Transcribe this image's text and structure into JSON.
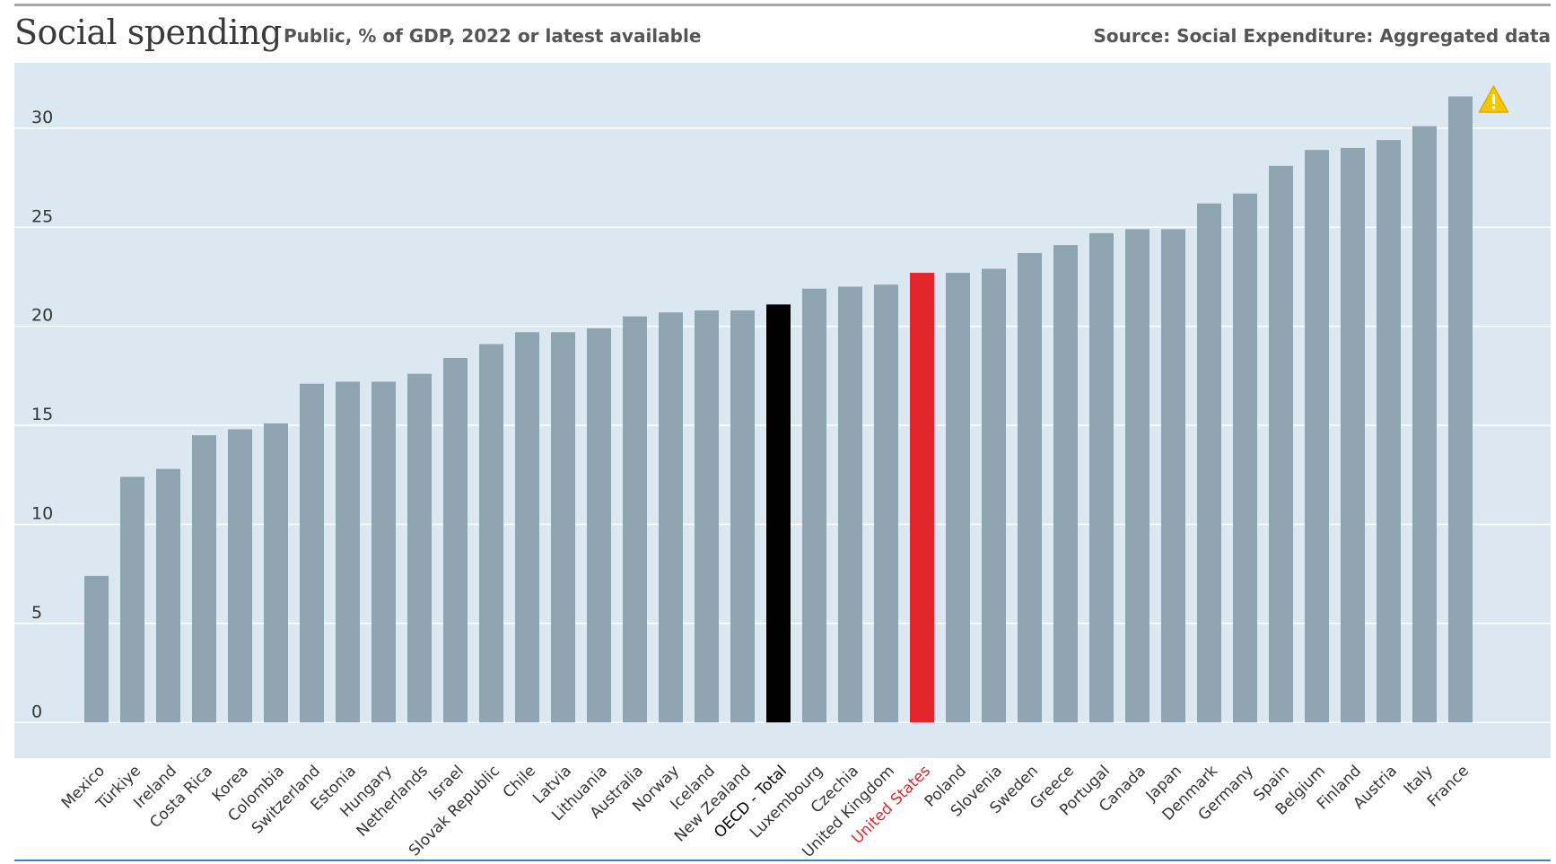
{
  "header": {
    "title": "Social spending",
    "subtitle": "Public, % of GDP, 2022 or latest available",
    "source": "Source: Social Expenditure: Aggregated data"
  },
  "colors": {
    "plot_background": "#dbe8f1",
    "gridline": "#ffffff",
    "bar_default": "#8fa4b1",
    "bar_oecd": "#000000",
    "bar_highlight": "#e3262b",
    "label_default": "#333333",
    "label_oecd": "#000000",
    "label_highlight": "#e3262b",
    "warning": "#f7c600"
  },
  "warning_icon": "warning-triangle-icon",
  "chart_data": {
    "type": "bar",
    "title": "Social spending",
    "subtitle": "Public, % of GDP, 2022 or latest available",
    "xlabel": "",
    "ylabel": "",
    "ylim": [
      -1.8,
      33.3
    ],
    "yticks": [
      0,
      5,
      10,
      15,
      20,
      25,
      30
    ],
    "grid": true,
    "categories": [
      "Mexico",
      "Türkiye",
      "Ireland",
      "Costa Rica",
      "Korea",
      "Colombia",
      "Switzerland",
      "Estonia",
      "Hungary",
      "Netherlands",
      "Israel",
      "Slovak Republic",
      "Chile",
      "Latvia",
      "Lithuania",
      "Australia",
      "Norway",
      "Iceland",
      "New Zealand",
      "OECD - Total",
      "Luxembourg",
      "Czechia",
      "United Kingdom",
      "United States",
      "Poland",
      "Slovenia",
      "Sweden",
      "Greece",
      "Portugal",
      "Canada",
      "Japan",
      "Denmark",
      "Germany",
      "Spain",
      "Belgium",
      "Finland",
      "Austria",
      "Italy",
      "France"
    ],
    "values": [
      7.4,
      12.4,
      12.8,
      14.5,
      14.8,
      15.1,
      17.1,
      17.2,
      17.2,
      17.6,
      18.4,
      19.1,
      19.7,
      19.7,
      19.9,
      20.5,
      20.7,
      20.8,
      20.8,
      21.1,
      21.9,
      22.0,
      22.1,
      22.7,
      22.7,
      22.9,
      23.7,
      24.1,
      24.7,
      24.9,
      24.9,
      26.2,
      26.7,
      28.1,
      28.9,
      29.0,
      29.4,
      30.1,
      31.6
    ],
    "highlight": {
      "OECD - Total": "oecd",
      "United States": "highlight"
    },
    "annotations": [
      {
        "category": "France",
        "type": "warning"
      }
    ]
  }
}
